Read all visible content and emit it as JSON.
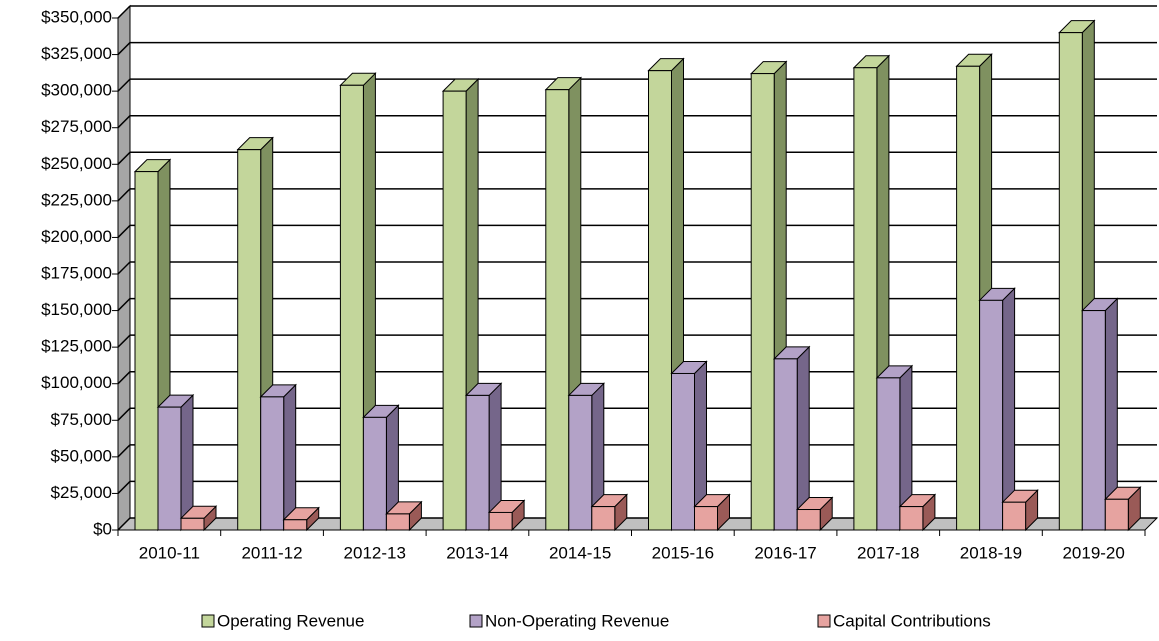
{
  "chart_data": {
    "type": "bar3d",
    "categories": [
      "2010-11",
      "2011-12",
      "2012-13",
      "2013-14",
      "2014-15",
      "2015-16",
      "2016-17",
      "2017-18",
      "2018-19",
      "2019-20"
    ],
    "series": [
      {
        "name": "Operating Revenue",
        "color": "#c3d69b",
        "side": "#7f9160",
        "values": [
          245000,
          260000,
          304000,
          300000,
          301000,
          314000,
          312000,
          316000,
          317000,
          340000
        ]
      },
      {
        "name": "Non-Operating Revenue",
        "color": "#b3a2c7",
        "side": "#75668a",
        "values": [
          84000,
          91000,
          77000,
          92000,
          92000,
          107000,
          117000,
          104000,
          157000,
          150000
        ]
      },
      {
        "name": "Capital Contributions",
        "color": "#e6a3a0",
        "side": "#9a5a57",
        "values": [
          8000,
          7000,
          11000,
          12000,
          16000,
          16000,
          14000,
          16000,
          19000,
          21000
        ]
      }
    ],
    "ylim": [
      0,
      350000
    ],
    "yticks": [
      {
        "value": 0,
        "label": "$0"
      },
      {
        "value": 25000,
        "label": "$25,000"
      },
      {
        "value": 50000,
        "label": "$50,000"
      },
      {
        "value": 75000,
        "label": "$75,000"
      },
      {
        "value": 100000,
        "label": "$100,000"
      },
      {
        "value": 125000,
        "label": "$125,000"
      },
      {
        "value": 150000,
        "label": "$150,000"
      },
      {
        "value": 175000,
        "label": "$175,000"
      },
      {
        "value": 200000,
        "label": "$200,000"
      },
      {
        "value": 225000,
        "label": "$225,000"
      },
      {
        "value": 250000,
        "label": "$250,000"
      },
      {
        "value": 275000,
        "label": "$275,000"
      },
      {
        "value": 300000,
        "label": "$300,000"
      },
      {
        "value": 325000,
        "label": "$325,000"
      },
      {
        "value": 350000,
        "label": "$350,000"
      }
    ],
    "grid": true,
    "legend": "bottom"
  }
}
